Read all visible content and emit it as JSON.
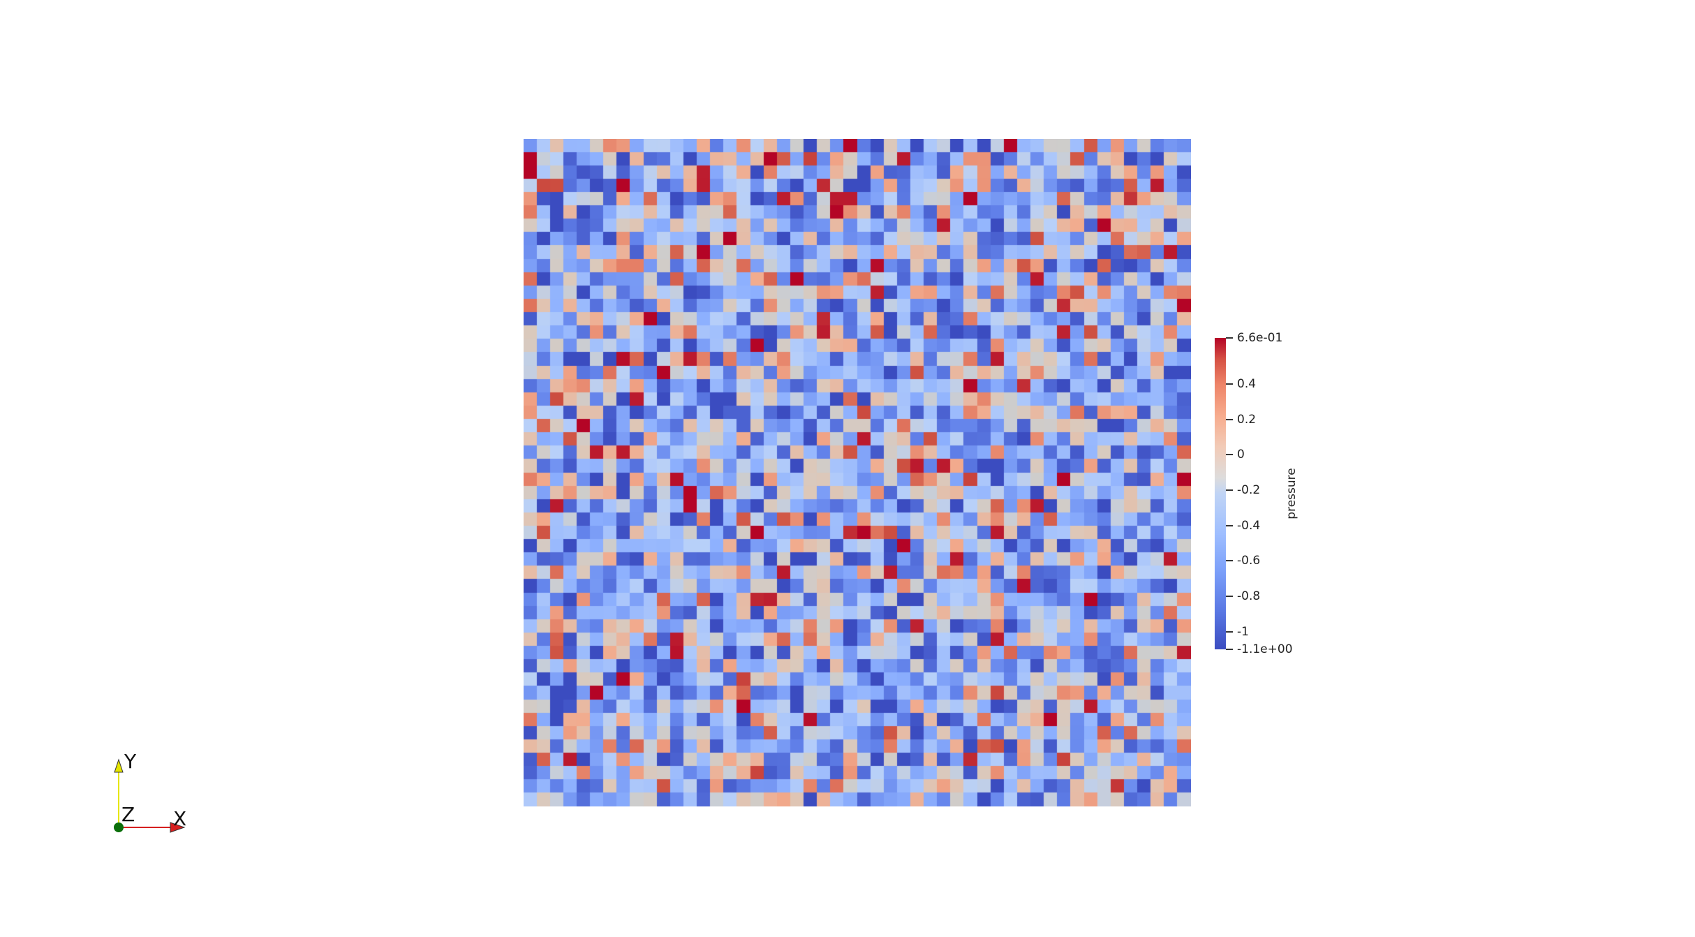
{
  "colorbar": {
    "title": "pressure",
    "max_label": "6.6e-01",
    "min_label": "-1.1e+00",
    "range": [
      -1.1,
      0.66
    ],
    "ticks": [
      {
        "value": 0.4,
        "label": "0.4"
      },
      {
        "value": 0.2,
        "label": "0.2"
      },
      {
        "value": 0,
        "label": "0"
      },
      {
        "value": -0.2,
        "label": "-0.2"
      },
      {
        "value": -0.4,
        "label": "-0.4"
      },
      {
        "value": -0.6,
        "label": "-0.6"
      },
      {
        "value": -0.8,
        "label": "-0.8"
      },
      {
        "value": -1,
        "label": "-1"
      }
    ]
  },
  "orientation_axes": {
    "x_label": "X",
    "y_label": "Y",
    "z_label": "Z",
    "x_color": "#d62020",
    "y_color": "#e6e600",
    "z_color": "#0a6e0a"
  },
  "heatmap": {
    "grid_cells": 50,
    "colormap": "cool-warm",
    "noise_seed": 7
  }
}
